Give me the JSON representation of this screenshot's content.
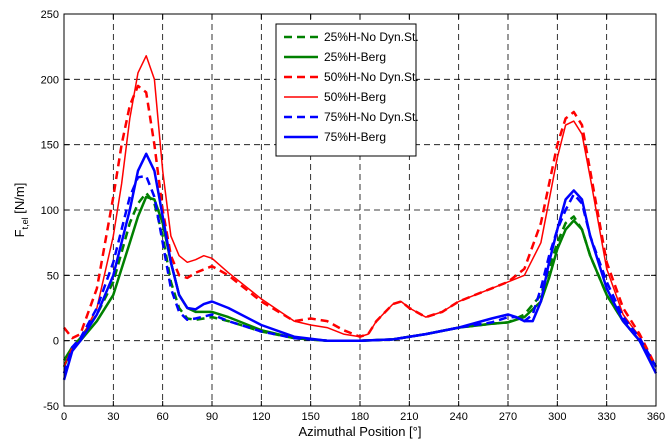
{
  "chart_data": {
    "type": "line",
    "xlabel": "Azimuthal Position [°]",
    "ylabel_main": "F",
    "ylabel_sub": "t,el",
    "ylabel_unit": " [N/m]",
    "xlim": [
      0,
      360
    ],
    "ylim": [
      -50,
      250
    ],
    "xticks": [
      0,
      30,
      60,
      90,
      120,
      150,
      180,
      210,
      240,
      270,
      300,
      330,
      360
    ],
    "yticks": [
      -50,
      0,
      50,
      100,
      150,
      200,
      250
    ],
    "grid": true,
    "legend_position": "top-center",
    "series": [
      {
        "name": "25%H-No Dyn.St.",
        "color": "#008000",
        "dash": true,
        "width": 2.5,
        "x": [
          0,
          5,
          10,
          20,
          30,
          40,
          45,
          50,
          55,
          60,
          65,
          70,
          75,
          80,
          90,
          100,
          120,
          140,
          160,
          180,
          200,
          220,
          240,
          260,
          270,
          280,
          290,
          295,
          300,
          305,
          310,
          315,
          320,
          330,
          340,
          350,
          360
        ],
        "y": [
          -20,
          -5,
          2,
          20,
          45,
          90,
          105,
          113,
          105,
          80,
          45,
          25,
          17,
          16,
          18,
          15,
          7,
          2,
          0,
          0,
          1,
          5,
          10,
          13,
          14,
          20,
          35,
          55,
          75,
          90,
          95,
          85,
          65,
          35,
          15,
          0,
          -20
        ]
      },
      {
        "name": "25%H-Berg",
        "color": "#008000",
        "dash": false,
        "width": 2.5,
        "x": [
          0,
          5,
          10,
          20,
          30,
          40,
          45,
          50,
          55,
          60,
          65,
          70,
          75,
          80,
          90,
          100,
          120,
          140,
          160,
          180,
          200,
          220,
          240,
          260,
          270,
          280,
          290,
          295,
          300,
          305,
          310,
          315,
          320,
          330,
          340,
          350,
          360
        ],
        "y": [
          -15,
          -5,
          0,
          15,
          35,
          75,
          95,
          110,
          108,
          90,
          60,
          35,
          25,
          22,
          22,
          18,
          8,
          2,
          0,
          0,
          1,
          5,
          10,
          13,
          14,
          18,
          30,
          48,
          70,
          85,
          92,
          85,
          65,
          35,
          15,
          0,
          -20
        ]
      },
      {
        "name": "50%H-No Dyn.St.",
        "color": "#ff0000",
        "dash": true,
        "width": 2.5,
        "x": [
          0,
          5,
          10,
          20,
          30,
          35,
          40,
          45,
          50,
          55,
          60,
          65,
          70,
          75,
          80,
          90,
          100,
          110,
          120,
          140,
          150,
          160,
          170,
          180,
          185,
          190,
          200,
          205,
          210,
          220,
          230,
          240,
          250,
          260,
          270,
          280,
          290,
          300,
          305,
          310,
          315,
          320,
          330,
          340,
          350,
          360
        ],
        "y": [
          10,
          2,
          5,
          40,
          110,
          150,
          180,
          195,
          190,
          150,
          100,
          65,
          50,
          48,
          52,
          57,
          50,
          40,
          30,
          15,
          17,
          15,
          8,
          3,
          5,
          15,
          28,
          30,
          25,
          18,
          22,
          30,
          35,
          40,
          45,
          55,
          90,
          150,
          170,
          175,
          165,
          130,
          60,
          25,
          5,
          -20
        ]
      },
      {
        "name": "50%H-Berg",
        "color": "#ff0000",
        "dash": false,
        "width": 1.5,
        "x": [
          0,
          5,
          10,
          20,
          30,
          35,
          40,
          45,
          50,
          55,
          60,
          65,
          70,
          75,
          80,
          85,
          90,
          100,
          110,
          120,
          140,
          150,
          160,
          170,
          180,
          185,
          190,
          200,
          205,
          210,
          220,
          230,
          240,
          250,
          260,
          270,
          280,
          290,
          300,
          305,
          310,
          315,
          320,
          330,
          340,
          350,
          360
        ],
        "y": [
          -20,
          -5,
          0,
          25,
          80,
          120,
          170,
          205,
          218,
          200,
          130,
          80,
          65,
          60,
          62,
          65,
          63,
          52,
          42,
          32,
          15,
          12,
          10,
          5,
          3,
          5,
          15,
          28,
          30,
          25,
          18,
          22,
          30,
          35,
          40,
          45,
          50,
          75,
          140,
          165,
          168,
          158,
          125,
          55,
          20,
          3,
          -20
        ]
      },
      {
        "name": "75%H-No Dyn.St.",
        "color": "#0000ff",
        "dash": true,
        "width": 2.5,
        "x": [
          0,
          5,
          10,
          20,
          30,
          40,
          45,
          50,
          55,
          60,
          65,
          70,
          75,
          80,
          90,
          100,
          120,
          140,
          160,
          180,
          200,
          220,
          240,
          260,
          270,
          275,
          280,
          285,
          290,
          295,
          300,
          305,
          310,
          315,
          320,
          330,
          340,
          350,
          360
        ],
        "y": [
          -25,
          -5,
          2,
          25,
          60,
          110,
          125,
          126,
          110,
          75,
          40,
          22,
          16,
          17,
          20,
          15,
          7,
          2,
          0,
          0,
          1,
          5,
          10,
          14,
          18,
          18,
          15,
          20,
          40,
          65,
          85,
          100,
          112,
          105,
          80,
          45,
          18,
          2,
          -20
        ]
      },
      {
        "name": "75%H-Berg",
        "color": "#0000ff",
        "dash": false,
        "width": 2.5,
        "x": [
          0,
          5,
          10,
          20,
          30,
          40,
          45,
          50,
          55,
          60,
          65,
          70,
          75,
          80,
          85,
          90,
          100,
          120,
          140,
          160,
          180,
          200,
          220,
          240,
          260,
          270,
          275,
          280,
          285,
          290,
          295,
          300,
          305,
          310,
          315,
          320,
          330,
          340,
          350,
          360
        ],
        "y": [
          -30,
          -8,
          0,
          20,
          50,
          100,
          130,
          143,
          130,
          95,
          60,
          35,
          25,
          24,
          28,
          30,
          25,
          12,
          3,
          0,
          0,
          1,
          5,
          10,
          17,
          20,
          18,
          15,
          15,
          30,
          60,
          85,
          108,
          115,
          108,
          80,
          40,
          15,
          0,
          -25
        ]
      }
    ]
  }
}
